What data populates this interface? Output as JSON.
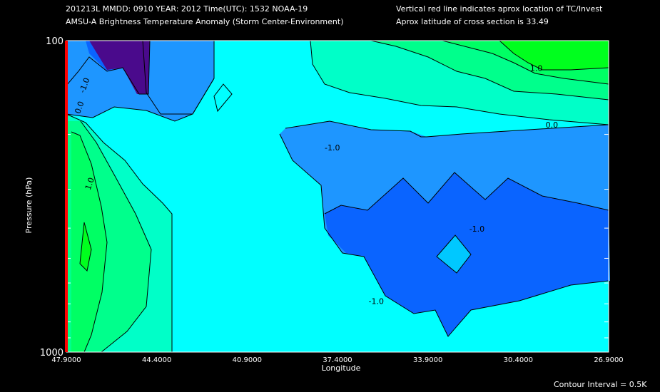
{
  "header": {
    "line1": "201213L  MMDD: 0910 YEAR: 2012 Time(UTC): 1532 NOAA-19",
    "line2": "AMSU-A Brightness Temperature Anomaly (Storm Center-Environment)",
    "line3": "Vertical red line indicates aprox location of TC/Invest",
    "line4": "Aprox latitude of cross section is 33.49"
  },
  "footer": {
    "contour_interval": "Contour Interval = 0.5K"
  },
  "chart_data": {
    "type": "contour",
    "xlabel": "Longitude",
    "ylabel": "Pressure (hPa)",
    "xlim": [
      47.9,
      26.9
    ],
    "ylim": [
      1000,
      100
    ],
    "yscale": "log",
    "x_tick_labels": [
      "47.9000",
      "44.4000",
      "40.9000",
      "37.4000",
      "33.9000",
      "30.4000",
      "26.9000"
    ],
    "y_tick_labels": [
      "100",
      "1000"
    ],
    "storm_longitude": 47.9,
    "contour_interval": 0.5,
    "contour_labels": [
      {
        "text": "-1.0",
        "lon": 47.1,
        "p": 140
      },
      {
        "text": "0.0",
        "lon": 47.3,
        "p": 165
      },
      {
        "text": "1.0",
        "lon": 46.9,
        "p": 290
      },
      {
        "text": "-1.0",
        "lon": 37.6,
        "p": 225
      },
      {
        "text": "-1.0",
        "lon": 32.0,
        "p": 410
      },
      {
        "text": "-1.0",
        "lon": 35.9,
        "p": 700
      },
      {
        "text": "1.0",
        "lon": 29.7,
        "p": 125
      },
      {
        "text": "0.0",
        "lon": 29.1,
        "p": 190
      }
    ],
    "colors": {
      "deep_purple": "#4a0a8c",
      "blue_1": "#0a64ff",
      "blue_2": "#1e96ff",
      "blue_3": "#00c8ff",
      "cyan": "#00ffff",
      "aqua_green": "#00ffc8",
      "green_1": "#00ff8c",
      "green_2": "#00ff64",
      "bright_green": "#00ff1e",
      "storm_line": "#ff0000"
    }
  }
}
